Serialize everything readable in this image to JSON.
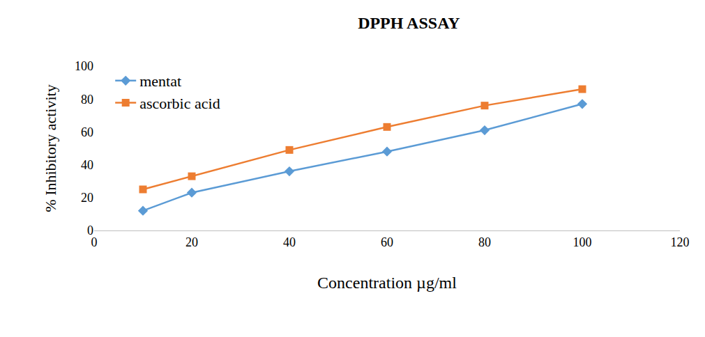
{
  "chart_data": {
    "type": "line",
    "title": "DPPH ASSAY",
    "x_label": "Concentration µg/ml",
    "y_label": "% Inhibitory activity",
    "x": [
      10,
      20,
      40,
      60,
      80,
      100
    ],
    "series": [
      {
        "name": "mentat",
        "color": "#5b9bd5",
        "marker": "diamond",
        "values": [
          12,
          23,
          36,
          48,
          61,
          77
        ]
      },
      {
        "name": "ascorbic acid",
        "color": "#ed7d31",
        "marker": "square",
        "values": [
          25,
          33,
          49,
          63,
          76,
          86
        ]
      }
    ],
    "xlim": [
      0,
      120
    ],
    "xticks": [
      0,
      20,
      40,
      60,
      80,
      100,
      120
    ],
    "ylim": [
      0,
      100
    ],
    "yticks": [
      0,
      20,
      40,
      60,
      80,
      100
    ],
    "grid": false,
    "legend": "top left"
  }
}
